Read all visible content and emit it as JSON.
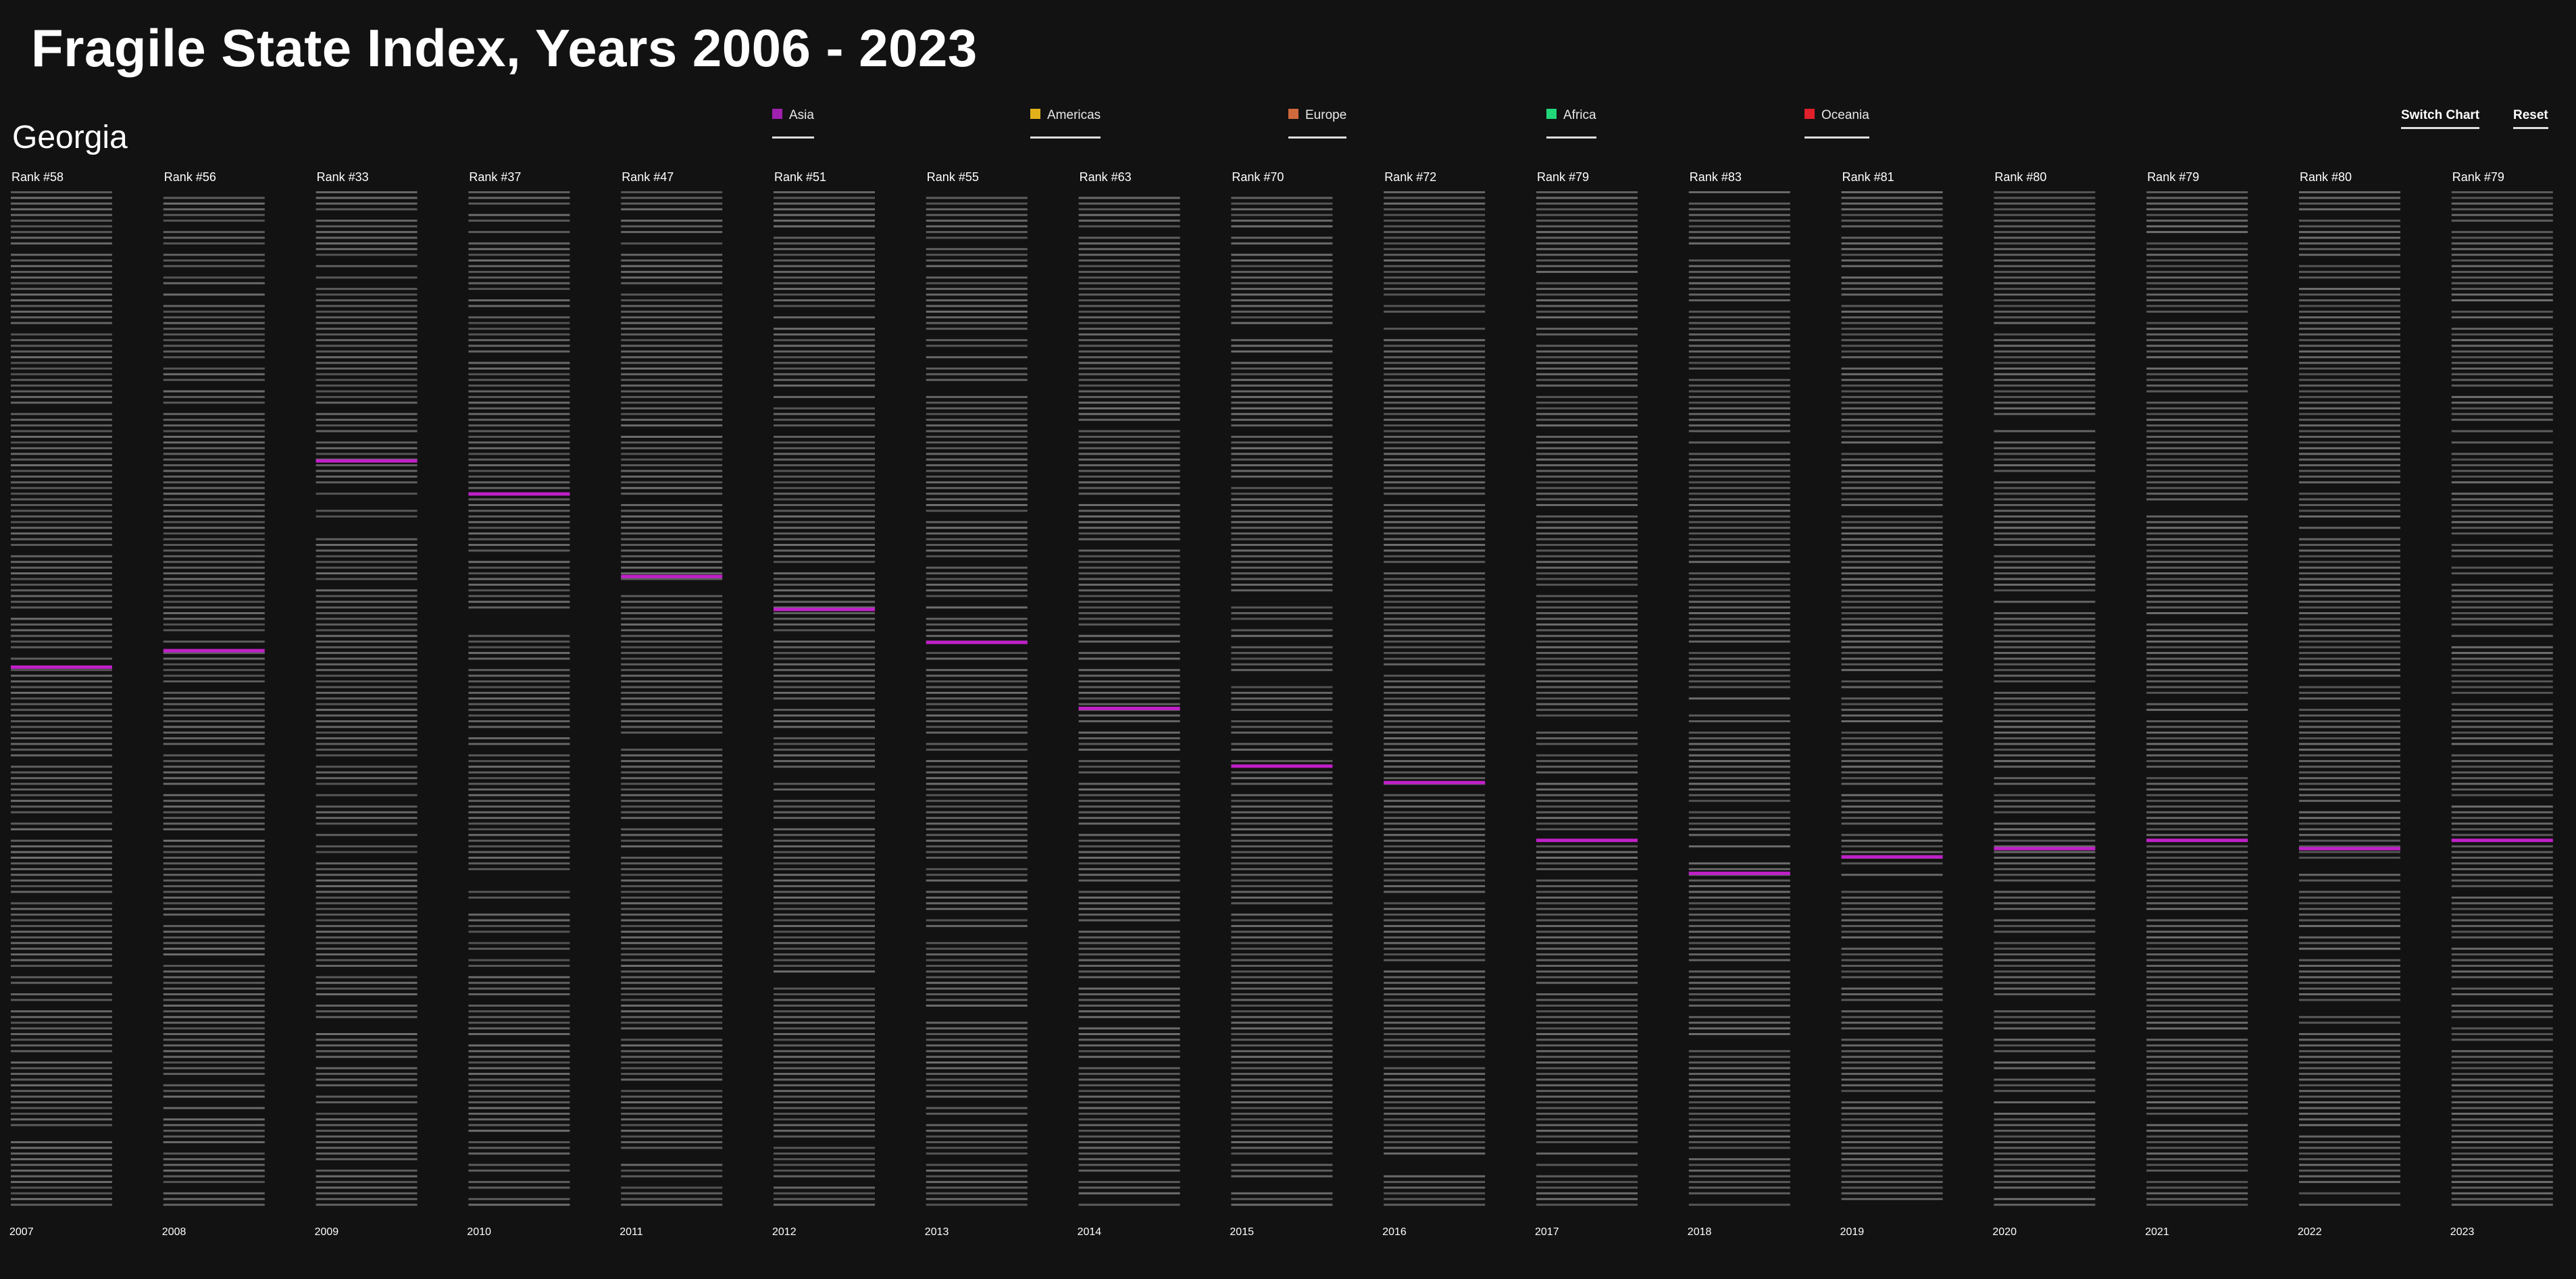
{
  "header": {
    "title": "Fragile State Index, Years 2006 - 2023"
  },
  "selection": {
    "country": "Georgia"
  },
  "legend": [
    {
      "label": "Asia",
      "color": "#a020b0"
    },
    {
      "label": "Americas",
      "color": "#e3b11b"
    },
    {
      "label": "Europe",
      "color": "#d06a3c"
    },
    {
      "label": "Africa",
      "color": "#22d67a"
    },
    {
      "label": "Oceania",
      "color": "#e0202a"
    }
  ],
  "controls": {
    "switch_label": "Switch Chart",
    "reset_label": "Reset"
  },
  "colors": {
    "line": "#6f6f6f",
    "highlight": "#c020c8",
    "background": "#121212"
  },
  "chart_data": {
    "type": "table",
    "title": "Fragile State Index, Years 2006 - 2023",
    "highlight_country": "Georgia",
    "highlight_region": "Asia",
    "years": [
      {
        "year": "2007",
        "rank": 58,
        "rank_label": "Rank #58"
      },
      {
        "year": "2008",
        "rank": 56,
        "rank_label": "Rank #56"
      },
      {
        "year": "2009",
        "rank": 33,
        "rank_label": "Rank #33"
      },
      {
        "year": "2010",
        "rank": 37,
        "rank_label": "Rank #37"
      },
      {
        "year": "2011",
        "rank": 47,
        "rank_label": "Rank #47"
      },
      {
        "year": "2012",
        "rank": 51,
        "rank_label": "Rank #51"
      },
      {
        "year": "2013",
        "rank": 55,
        "rank_label": "Rank #55"
      },
      {
        "year": "2014",
        "rank": 63,
        "rank_label": "Rank #63"
      },
      {
        "year": "2015",
        "rank": 70,
        "rank_label": "Rank #70"
      },
      {
        "year": "2016",
        "rank": 72,
        "rank_label": "Rank #72"
      },
      {
        "year": "2017",
        "rank": 79,
        "rank_label": "Rank #79"
      },
      {
        "year": "2018",
        "rank": 83,
        "rank_label": "Rank #83"
      },
      {
        "year": "2019",
        "rank": 81,
        "rank_label": "Rank #81"
      },
      {
        "year": "2020",
        "rank": 80,
        "rank_label": "Rank #80"
      },
      {
        "year": "2021",
        "rank": 79,
        "rank_label": "Rank #79"
      },
      {
        "year": "2022",
        "rank": 80,
        "rank_label": "Rank #80"
      },
      {
        "year": "2023",
        "rank": 79,
        "rank_label": "Rank #79"
      }
    ]
  }
}
